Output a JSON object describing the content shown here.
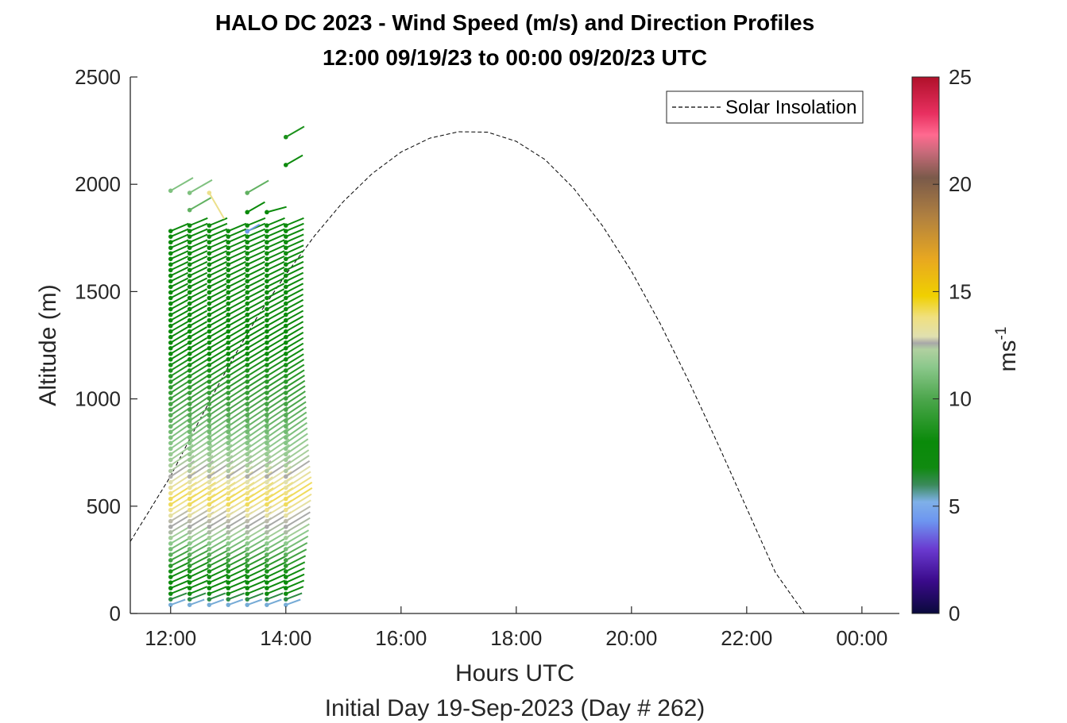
{
  "chart_data": {
    "type": "wind-barb-profile",
    "title": "HALO DC 2023 - Wind Speed (m/s) and Direction Profiles",
    "subtitle": "12:00 09/19/23 to 00:00 09/20/23  UTC",
    "xlabel": "Hours UTC",
    "xlabel2": "Initial Day 19-Sep-2023 (Day # 262)",
    "ylabel": "Altitude (m)",
    "xlim": [
      11.3,
      24.65
    ],
    "ylim": [
      0,
      2500
    ],
    "xticks": [
      {
        "value": 12,
        "label": "12:00"
      },
      {
        "value": 14,
        "label": "14:00"
      },
      {
        "value": 16,
        "label": "16:00"
      },
      {
        "value": 18,
        "label": "18:00"
      },
      {
        "value": 20,
        "label": "20:00"
      },
      {
        "value": 22,
        "label": "22:00"
      },
      {
        "value": 24,
        "label": "00:00"
      }
    ],
    "yticks": [
      {
        "value": 0,
        "label": "0"
      },
      {
        "value": 500,
        "label": "500"
      },
      {
        "value": 1000,
        "label": "1000"
      },
      {
        "value": 1500,
        "label": "1500"
      },
      {
        "value": 2000,
        "label": "2000"
      },
      {
        "value": 2500,
        "label": "2500"
      }
    ],
    "legend": {
      "placement": "top-right",
      "entries": [
        "Solar Insolation"
      ]
    },
    "colorbar": {
      "label": "ms",
      "label_exponent": "-1",
      "range": [
        0,
        25
      ],
      "ticks": [
        {
          "value": 0,
          "label": "0"
        },
        {
          "value": 5,
          "label": "5"
        },
        {
          "value": 10,
          "label": "10"
        },
        {
          "value": 15,
          "label": "15"
        },
        {
          "value": 20,
          "label": "20"
        },
        {
          "value": 25,
          "label": "25"
        }
      ],
      "colormap": [
        [
          0,
          "#0a0a3c"
        ],
        [
          1.5,
          "#3a0a8a"
        ],
        [
          3,
          "#6a3ad0"
        ],
        [
          4.3,
          "#6d95f0"
        ],
        [
          5.2,
          "#7fb0e8"
        ],
        [
          6,
          "#3a8a5a"
        ],
        [
          6.8,
          "#108a10"
        ],
        [
          8,
          "#0a8a0a"
        ],
        [
          10,
          "#4ca64c"
        ],
        [
          11.5,
          "#8cc88c"
        ],
        [
          12.3,
          "#b0d0a0"
        ],
        [
          12.6,
          "#a8a8a8"
        ],
        [
          12.9,
          "#e0e0b0"
        ],
        [
          13.8,
          "#f0e080"
        ],
        [
          14.8,
          "#f0d000"
        ],
        [
          16.5,
          "#e8a820"
        ],
        [
          18.5,
          "#b08040"
        ],
        [
          20.3,
          "#7a5a4a"
        ],
        [
          21.5,
          "#c86a7a"
        ],
        [
          22.3,
          "#ff6a90"
        ],
        [
          23.3,
          "#e83060"
        ],
        [
          25,
          "#b0102a"
        ]
      ]
    },
    "solar_insolation": {
      "description_series": "Solar Insolation",
      "x": [
        11.3,
        12.0,
        12.5,
        13.0,
        13.5,
        14.0,
        14.5,
        15.0,
        15.5,
        16.0,
        16.5,
        17.0,
        17.5,
        18.0,
        18.5,
        19.0,
        19.5,
        20.0,
        20.5,
        21.0,
        21.5,
        22.0,
        22.5,
        23.0,
        23.4,
        23.6,
        24.0,
        24.65
      ],
      "y": [
        335,
        640,
        900,
        1150,
        1380,
        1580,
        1760,
        1920,
        2050,
        2150,
        2215,
        2245,
        2243,
        2200,
        2115,
        1980,
        1805,
        1595,
        1350,
        1080,
        790,
        490,
        190,
        0,
        0,
        0,
        0,
        0
      ]
    },
    "profiles": [
      {
        "time": 12.0,
        "top": 1790,
        "extra": [
          {
            "alt": 1970,
            "speed": 11.2,
            "dir": 300
          }
        ]
      },
      {
        "time": 12.33,
        "top": 1830,
        "extra": [
          {
            "alt": 1960,
            "speed": 11.2,
            "dir": 300
          },
          {
            "alt": 1880,
            "speed": 10.5,
            "dir": 300
          }
        ]
      },
      {
        "time": 12.67,
        "top": 1830,
        "extra": [
          {
            "alt": 1960,
            "speed": 13.6,
            "dir": 210
          }
        ]
      },
      {
        "time": 13.0,
        "top": 1790,
        "extra": []
      },
      {
        "time": 13.33,
        "top": 1830,
        "extra": [
          {
            "alt": 1960,
            "speed": 10.5,
            "dir": 300
          },
          {
            "alt": 1870,
            "speed": 8.0,
            "dir": 300
          },
          {
            "alt": 1780,
            "speed": 4.5,
            "dir": 300
          }
        ]
      },
      {
        "time": 13.67,
        "top": 1830,
        "extra": [
          {
            "alt": 1870,
            "speed": 8.0,
            "dir": 285
          }
        ]
      },
      {
        "time": 14.0,
        "top": 1830,
        "extra": [
          {
            "alt": 2220,
            "speed": 8.5,
            "dir": 300
          },
          {
            "alt": 2090,
            "speed": 7.5,
            "dir": 300
          }
        ]
      }
    ],
    "speed_profile": [
      {
        "alt": 40,
        "speed": 5.3
      },
      {
        "alt": 100,
        "speed": 7.5
      },
      {
        "alt": 200,
        "speed": 8.5
      },
      {
        "alt": 300,
        "speed": 11.0
      },
      {
        "alt": 380,
        "speed": 12.5
      },
      {
        "alt": 430,
        "speed": 12.7
      },
      {
        "alt": 470,
        "speed": 13.4
      },
      {
        "alt": 520,
        "speed": 14.3
      },
      {
        "alt": 570,
        "speed": 13.5
      },
      {
        "alt": 620,
        "speed": 12.8
      },
      {
        "alt": 680,
        "speed": 12.2
      },
      {
        "alt": 800,
        "speed": 11.3
      },
      {
        "alt": 1000,
        "speed": 9.5
      },
      {
        "alt": 1200,
        "speed": 8.0
      },
      {
        "alt": 1500,
        "speed": 7.5
      },
      {
        "alt": 1830,
        "speed": 7.5
      }
    ],
    "direction_profile": [
      {
        "alt": 40,
        "dir": 290
      },
      {
        "alt": 300,
        "dir": 300
      },
      {
        "alt": 800,
        "dir": 305
      },
      {
        "alt": 1300,
        "dir": 300
      },
      {
        "alt": 1830,
        "dir": 292
      }
    ],
    "level_spacing_m": 26,
    "lowest_level_m": 40
  }
}
